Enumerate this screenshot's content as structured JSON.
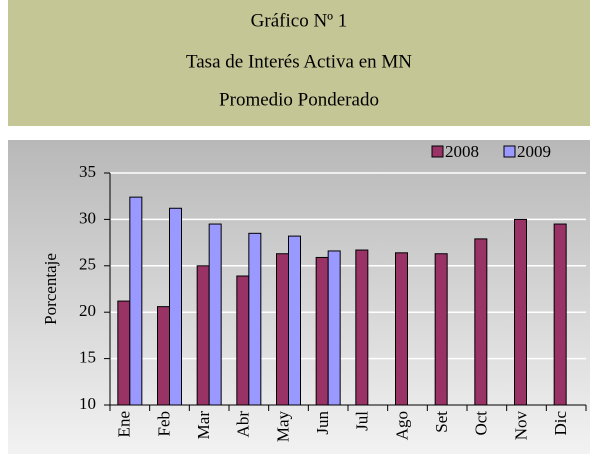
{
  "chart_data": {
    "type": "bar",
    "title_lines": [
      "Gráfico Nº 1",
      "Tasa de Interés Activa en MN",
      "Promedio Ponderado"
    ],
    "y_label": "Porcentaje",
    "categories": [
      "Ene",
      "Feb",
      "Mar",
      "Abr",
      "May",
      "Jun",
      "Jul",
      "Ago",
      "Set",
      "Oct",
      "Nov",
      "Dic"
    ],
    "series": [
      {
        "name": "2008",
        "color": "#993366",
        "values": [
          21.2,
          20.6,
          25.0,
          23.9,
          26.3,
          25.9,
          26.7,
          26.4,
          26.3,
          27.9,
          30.0,
          29.5
        ]
      },
      {
        "name": "2009",
        "color": "#9999ff",
        "values": [
          32.4,
          31.2,
          29.5,
          28.5,
          28.2,
          26.6,
          null,
          null,
          null,
          null,
          null,
          null
        ]
      }
    ],
    "ylim": [
      10,
      35
    ],
    "yticks": [
      10,
      15,
      20,
      25,
      30,
      35
    ],
    "grid": true,
    "legend": "top-right"
  }
}
